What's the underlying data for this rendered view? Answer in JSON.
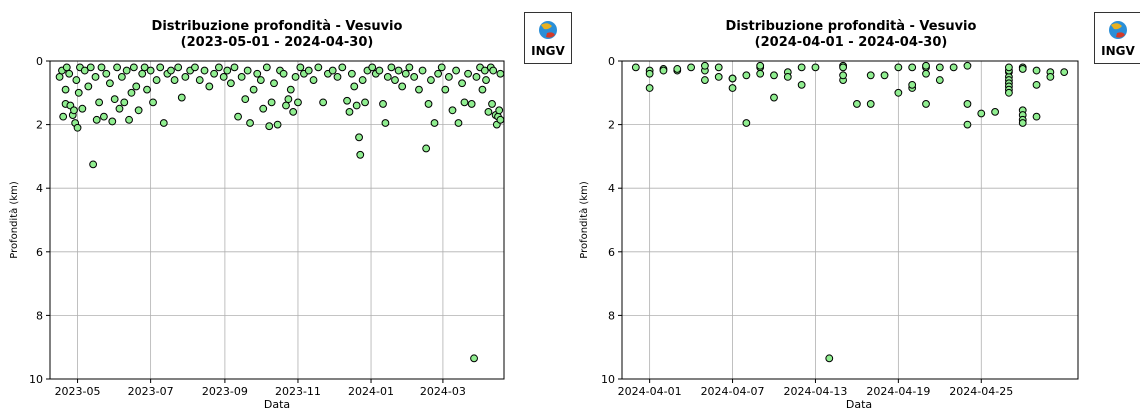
{
  "charts": [
    {
      "title_line1": "Distribuzione profondità - Vesuvio",
      "title_line2": "(2023-05-01 - 2024-04-30)",
      "xlabel": "Data",
      "ylabel": "Profondità (km)",
      "logo_text": "INGV"
    },
    {
      "title_line1": "Distribuzione profondità - Vesuvio",
      "title_line2": "(2024-04-01 - 2024-04-30)",
      "xlabel": "Data",
      "ylabel": "Profondità (km)",
      "logo_text": "INGV"
    }
  ],
  "chart_data": [
    {
      "type": "scatter",
      "title": "Distribuzione profondità - Vesuvio\n(2023-05-01 - 2024-04-30)",
      "xlabel": "Data",
      "ylabel": "Profondità (km)",
      "x_type": "date",
      "xlim": [
        "2023-04-08",
        "2024-04-21"
      ],
      "ylim": [
        10,
        0
      ],
      "y_inverted": true,
      "x_ticks": [
        "2023-05-01",
        "2023-07-01",
        "2023-09-01",
        "2023-11-01",
        "2024-01-01",
        "2024-03-01"
      ],
      "x_tick_labels": [
        "2023-05",
        "2023-07",
        "2023-09",
        "2023-11",
        "2024-01",
        "2024-03"
      ],
      "y_ticks": [
        0,
        2,
        4,
        6,
        8,
        10
      ],
      "grid": true,
      "marker_color": "#90ee90",
      "marker_edge": "#000000",
      "points": [
        [
          "2023-04-16",
          0.5
        ],
        [
          "2023-04-18",
          0.3
        ],
        [
          "2023-04-19",
          1.75
        ],
        [
          "2023-04-21",
          0.9
        ],
        [
          "2023-04-21",
          1.35
        ],
        [
          "2023-04-22",
          0.2
        ],
        [
          "2023-04-24",
          0.4
        ],
        [
          "2023-04-25",
          1.4
        ],
        [
          "2023-04-27",
          1.7
        ],
        [
          "2023-04-28",
          1.55
        ],
        [
          "2023-04-29",
          1.95
        ],
        [
          "2023-04-30",
          0.6
        ],
        [
          "2023-05-01",
          2.1
        ],
        [
          "2023-05-02",
          1.0
        ],
        [
          "2023-05-03",
          0.2
        ],
        [
          "2023-05-05",
          1.5
        ],
        [
          "2023-05-07",
          0.3
        ],
        [
          "2023-05-10",
          0.8
        ],
        [
          "2023-05-12",
          0.2
        ],
        [
          "2023-05-14",
          3.25
        ],
        [
          "2023-05-16",
          0.5
        ],
        [
          "2023-05-17",
          1.85
        ],
        [
          "2023-05-19",
          1.3
        ],
        [
          "2023-05-21",
          0.2
        ],
        [
          "2023-05-23",
          1.75
        ],
        [
          "2023-05-25",
          0.4
        ],
        [
          "2023-05-28",
          0.7
        ],
        [
          "2023-05-30",
          1.9
        ],
        [
          "2023-06-01",
          1.2
        ],
        [
          "2023-06-03",
          0.2
        ],
        [
          "2023-06-05",
          1.5
        ],
        [
          "2023-06-07",
          0.5
        ],
        [
          "2023-06-09",
          1.3
        ],
        [
          "2023-06-11",
          0.3
        ],
        [
          "2023-06-13",
          1.85
        ],
        [
          "2023-06-15",
          1.0
        ],
        [
          "2023-06-17",
          0.2
        ],
        [
          "2023-06-19",
          0.8
        ],
        [
          "2023-06-21",
          1.55
        ],
        [
          "2023-06-24",
          0.4
        ],
        [
          "2023-06-26",
          0.2
        ],
        [
          "2023-06-28",
          0.9
        ],
        [
          "2023-07-01",
          0.3
        ],
        [
          "2023-07-03",
          1.3
        ],
        [
          "2023-07-06",
          0.6
        ],
        [
          "2023-07-09",
          0.2
        ],
        [
          "2023-07-12",
          1.95
        ],
        [
          "2023-07-15",
          0.4
        ],
        [
          "2023-07-18",
          0.3
        ],
        [
          "2023-07-21",
          0.6
        ],
        [
          "2023-07-24",
          0.2
        ],
        [
          "2023-07-27",
          1.15
        ],
        [
          "2023-07-30",
          0.5
        ],
        [
          "2023-08-03",
          0.3
        ],
        [
          "2023-08-07",
          0.2
        ],
        [
          "2023-08-11",
          0.6
        ],
        [
          "2023-08-15",
          0.3
        ],
        [
          "2023-08-19",
          0.8
        ],
        [
          "2023-08-23",
          0.4
        ],
        [
          "2023-08-27",
          0.2
        ],
        [
          "2023-08-31",
          0.5
        ],
        [
          "2023-09-03",
          0.3
        ],
        [
          "2023-09-06",
          0.7
        ],
        [
          "2023-09-09",
          0.2
        ],
        [
          "2023-09-12",
          1.75
        ],
        [
          "2023-09-15",
          0.5
        ],
        [
          "2023-09-18",
          1.2
        ],
        [
          "2023-09-20",
          0.3
        ],
        [
          "2023-09-22",
          1.95
        ],
        [
          "2023-09-25",
          0.9
        ],
        [
          "2023-09-28",
          0.4
        ],
        [
          "2023-10-01",
          0.6
        ],
        [
          "2023-10-03",
          1.5
        ],
        [
          "2023-10-06",
          0.2
        ],
        [
          "2023-10-08",
          2.05
        ],
        [
          "2023-10-10",
          1.3
        ],
        [
          "2023-10-12",
          0.7
        ],
        [
          "2023-10-15",
          2.0
        ],
        [
          "2023-10-17",
          0.3
        ],
        [
          "2023-10-20",
          0.4
        ],
        [
          "2023-10-22",
          1.4
        ],
        [
          "2023-10-24",
          1.2
        ],
        [
          "2023-10-26",
          0.9
        ],
        [
          "2023-10-28",
          1.6
        ],
        [
          "2023-10-30",
          0.5
        ],
        [
          "2023-11-01",
          1.3
        ],
        [
          "2023-11-03",
          0.2
        ],
        [
          "2023-11-06",
          0.4
        ],
        [
          "2023-11-10",
          0.3
        ],
        [
          "2023-11-14",
          0.6
        ],
        [
          "2023-11-18",
          0.2
        ],
        [
          "2023-11-22",
          1.3
        ],
        [
          "2023-11-26",
          0.4
        ],
        [
          "2023-11-30",
          0.3
        ],
        [
          "2023-12-04",
          0.5
        ],
        [
          "2023-12-08",
          0.2
        ],
        [
          "2023-12-12",
          1.25
        ],
        [
          "2023-12-14",
          1.6
        ],
        [
          "2023-12-16",
          0.4
        ],
        [
          "2023-12-18",
          0.8
        ],
        [
          "2023-12-20",
          1.4
        ],
        [
          "2023-12-22",
          2.4
        ],
        [
          "2023-12-23",
          2.95
        ],
        [
          "2023-12-25",
          0.6
        ],
        [
          "2023-12-27",
          1.3
        ],
        [
          "2023-12-29",
          0.3
        ],
        [
          "2024-01-02",
          0.2
        ],
        [
          "2024-01-05",
          0.4
        ],
        [
          "2024-01-08",
          0.3
        ],
        [
          "2024-01-11",
          1.35
        ],
        [
          "2024-01-13",
          1.95
        ],
        [
          "2024-01-15",
          0.5
        ],
        [
          "2024-01-18",
          0.2
        ],
        [
          "2024-01-21",
          0.6
        ],
        [
          "2024-01-24",
          0.3
        ],
        [
          "2024-01-27",
          0.8
        ],
        [
          "2024-01-30",
          0.4
        ],
        [
          "2024-02-02",
          0.2
        ],
        [
          "2024-02-06",
          0.5
        ],
        [
          "2024-02-10",
          0.9
        ],
        [
          "2024-02-13",
          0.3
        ],
        [
          "2024-02-16",
          2.75
        ],
        [
          "2024-02-18",
          1.35
        ],
        [
          "2024-02-20",
          0.6
        ],
        [
          "2024-02-23",
          1.95
        ],
        [
          "2024-02-26",
          0.4
        ],
        [
          "2024-02-29",
          0.2
        ],
        [
          "2024-03-03",
          0.9
        ],
        [
          "2024-03-06",
          0.5
        ],
        [
          "2024-03-09",
          1.55
        ],
        [
          "2024-03-12",
          0.3
        ],
        [
          "2024-03-14",
          1.95
        ],
        [
          "2024-03-17",
          0.7
        ],
        [
          "2024-03-19",
          1.3
        ],
        [
          "2024-03-22",
          0.4
        ],
        [
          "2024-03-25",
          1.35
        ],
        [
          "2024-03-27",
          9.35
        ],
        [
          "2024-03-29",
          0.5
        ],
        [
          "2024-04-01",
          0.2
        ],
        [
          "2024-04-03",
          0.9
        ],
        [
          "2024-04-05",
          0.3
        ],
        [
          "2024-04-06",
          0.6
        ],
        [
          "2024-04-08",
          1.6
        ],
        [
          "2024-04-10",
          0.2
        ],
        [
          "2024-04-11",
          1.35
        ],
        [
          "2024-04-12",
          0.3
        ],
        [
          "2024-04-14",
          1.7
        ],
        [
          "2024-04-15",
          2.0
        ],
        [
          "2024-04-16",
          1.75
        ],
        [
          "2024-04-17",
          1.55
        ],
        [
          "2024-04-18",
          0.4
        ],
        [
          "2024-04-18",
          1.85
        ]
      ]
    },
    {
      "type": "scatter",
      "title": "Distribuzione profondità - Vesuvio\n(2024-04-01 - 2024-04-30)",
      "xlabel": "Data",
      "ylabel": "Profondità (km)",
      "x_type": "date",
      "xlim": [
        "2024-03-30",
        "2024-05-02"
      ],
      "ylim": [
        10,
        0
      ],
      "y_inverted": true,
      "x_ticks": [
        "2024-04-01",
        "2024-04-07",
        "2024-04-13",
        "2024-04-19",
        "2024-04-25"
      ],
      "x_tick_labels": [
        "2024-04-01",
        "2024-04-07",
        "2024-04-13",
        "2024-04-19",
        "2024-04-25"
      ],
      "y_ticks": [
        0,
        2,
        4,
        6,
        8,
        10
      ],
      "grid": true,
      "marker_color": "#90ee90",
      "marker_edge": "#000000",
      "points": [
        [
          "2024-03-31",
          0.2
        ],
        [
          "2024-04-01",
          0.85
        ],
        [
          "2024-04-01",
          0.3
        ],
        [
          "2024-04-01",
          0.4
        ],
        [
          "2024-04-02",
          0.25
        ],
        [
          "2024-04-02",
          0.3
        ],
        [
          "2024-04-03",
          0.3
        ],
        [
          "2024-04-03",
          0.25
        ],
        [
          "2024-04-04",
          0.2
        ],
        [
          "2024-04-05",
          0.3
        ],
        [
          "2024-04-05",
          0.15
        ],
        [
          "2024-04-05",
          0.6
        ],
        [
          "2024-04-06",
          0.5
        ],
        [
          "2024-04-06",
          0.2
        ],
        [
          "2024-04-07",
          0.55
        ],
        [
          "2024-04-07",
          0.85
        ],
        [
          "2024-04-07",
          0.55
        ],
        [
          "2024-04-08",
          1.95
        ],
        [
          "2024-04-08",
          0.45
        ],
        [
          "2024-04-09",
          0.2
        ],
        [
          "2024-04-09",
          0.15
        ],
        [
          "2024-04-09",
          0.4
        ],
        [
          "2024-04-10",
          0.45
        ],
        [
          "2024-04-10",
          1.15
        ],
        [
          "2024-04-11",
          0.35
        ],
        [
          "2024-04-11",
          0.5
        ],
        [
          "2024-04-12",
          0.2
        ],
        [
          "2024-04-12",
          0.75
        ],
        [
          "2024-04-13",
          0.2
        ],
        [
          "2024-04-14",
          9.35
        ],
        [
          "2024-04-15",
          0.15
        ],
        [
          "2024-04-15",
          0.6
        ],
        [
          "2024-04-15",
          0.45
        ],
        [
          "2024-04-15",
          0.2
        ],
        [
          "2024-04-16",
          1.35
        ],
        [
          "2024-04-17",
          0.45
        ],
        [
          "2024-04-17",
          1.35
        ],
        [
          "2024-04-18",
          0.45
        ],
        [
          "2024-04-19",
          0.2
        ],
        [
          "2024-04-19",
          1.0
        ],
        [
          "2024-04-20",
          0.2
        ],
        [
          "2024-04-20",
          0.85
        ],
        [
          "2024-04-20",
          0.75
        ],
        [
          "2024-04-21",
          0.2
        ],
        [
          "2024-04-21",
          0.4
        ],
        [
          "2024-04-21",
          0.15
        ],
        [
          "2024-04-21",
          1.35
        ],
        [
          "2024-04-22",
          0.6
        ],
        [
          "2024-04-22",
          0.2
        ],
        [
          "2024-04-23",
          0.2
        ],
        [
          "2024-04-24",
          0.15
        ],
        [
          "2024-04-24",
          1.35
        ],
        [
          "2024-04-24",
          2.0
        ],
        [
          "2024-04-25",
          1.65
        ],
        [
          "2024-04-26",
          1.6
        ],
        [
          "2024-04-27",
          0.35
        ],
        [
          "2024-04-27",
          0.5
        ],
        [
          "2024-04-27",
          0.6
        ],
        [
          "2024-04-27",
          0.7
        ],
        [
          "2024-04-27",
          0.8
        ],
        [
          "2024-04-27",
          0.9
        ],
        [
          "2024-04-27",
          1.0
        ],
        [
          "2024-04-27",
          0.3
        ],
        [
          "2024-04-27",
          0.2
        ],
        [
          "2024-04-28",
          1.55
        ],
        [
          "2024-04-28",
          1.7
        ],
        [
          "2024-04-28",
          1.85
        ],
        [
          "2024-04-28",
          1.95
        ],
        [
          "2024-04-28",
          0.2
        ],
        [
          "2024-04-28",
          0.25
        ],
        [
          "2024-04-29",
          0.3
        ],
        [
          "2024-04-29",
          1.75
        ],
        [
          "2024-04-29",
          0.75
        ],
        [
          "2024-04-30",
          0.35
        ],
        [
          "2024-04-30",
          0.5
        ],
        [
          "2024-05-01",
          0.35
        ]
      ]
    }
  ]
}
